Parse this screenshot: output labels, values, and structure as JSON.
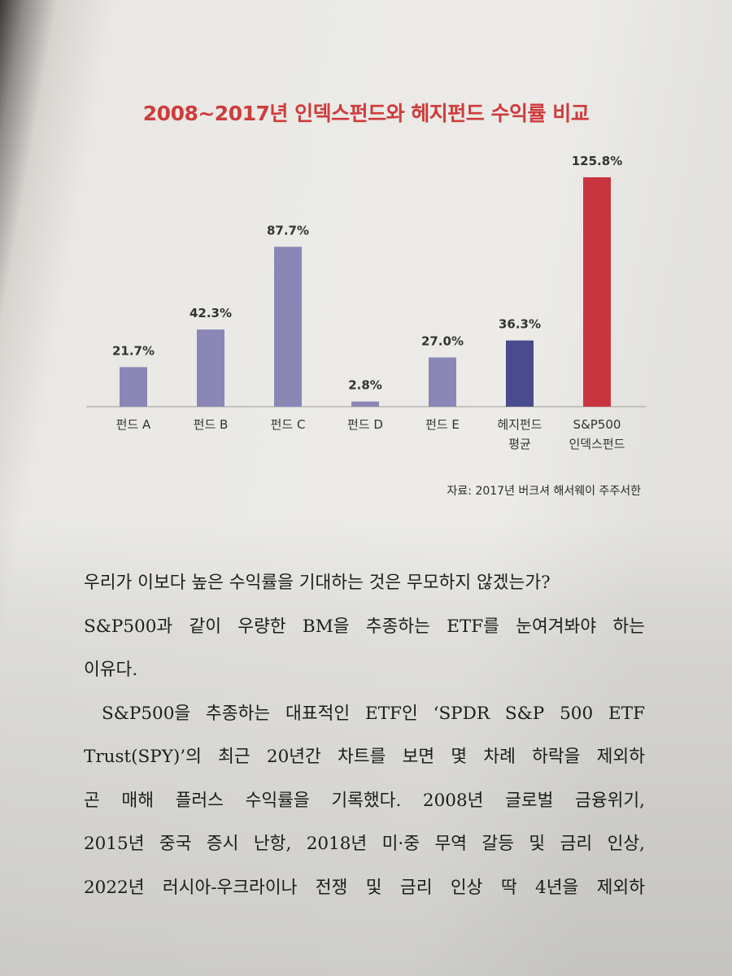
{
  "chart_data": {
    "type": "bar",
    "title": "2008~2017년 인덱스펀드와 헤지펀드 수익률 비교",
    "categories": [
      [
        "펀드 A"
      ],
      [
        "펀드 B"
      ],
      [
        "펀드 C"
      ],
      [
        "펀드 D"
      ],
      [
        "펀드 E"
      ],
      [
        "헤지펀드",
        "평균"
      ],
      [
        "S&P500",
        "인덱스펀드"
      ]
    ],
    "values": [
      21.7,
      42.3,
      87.7,
      2.8,
      27.0,
      36.3,
      125.8
    ],
    "value_labels": [
      "21.7%",
      "42.3%",
      "87.7%",
      "2.8%",
      "27.0%",
      "36.3%",
      "125.8%"
    ],
    "unit": "%",
    "ylim": [
      0,
      125.8
    ],
    "grid": false,
    "colors": [
      "#8a87b6",
      "#8a87b6",
      "#8a87b6",
      "#8a87b6",
      "#8a87b6",
      "#4a4a8e",
      "#c9353f"
    ],
    "source": "자료: 2017년 버크셔 해서웨이 주주서한"
  },
  "body_lines": [
    "우리가 이보다 높은 수익률을 기대하는 것은 무모하지 않겠는가?",
    "S&P500과 같이 우량한 BM을 추종하는 ETF를 눈여겨봐야 하는",
    "이유다.",
    "S&P500을 추종하는 대표적인 ETF인 ‘SPDR S&P 500 ETF",
    "Trust(SPY)’의 최근 20년간 차트를 보면 몇 차례 하락을 제외하",
    "곤 매해 플러스 수익률을 기록했다. 2008년 글로벌 금융위기,",
    "2015년 중국 증시 난항, 2018년 미·중 무역 갈등 및 금리 인상,",
    "2022년 러시아-우크라이나 전쟁 및 금리 인상 딱 4년을 제외하"
  ]
}
